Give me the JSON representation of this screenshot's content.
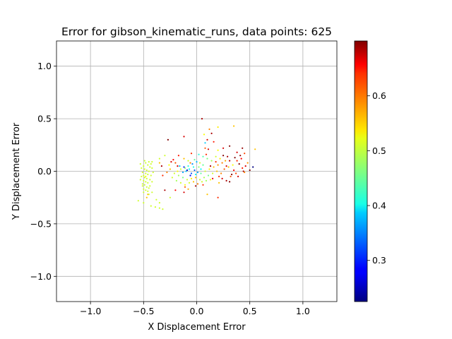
{
  "chart_data": {
    "type": "scatter",
    "title": "Error for gibson_kinematic_runs, data points: 625",
    "xlabel": "X Displacement Error",
    "ylabel": "Y Displacement Error",
    "xlim": [
      -1.32,
      1.32
    ],
    "ylim": [
      -1.24,
      1.24
    ],
    "x_ticks": [
      -1.0,
      -0.5,
      0.0,
      0.5,
      1.0
    ],
    "x_tick_labels": [
      "−1.0",
      "−0.5",
      "0.0",
      "0.5",
      "1.0"
    ],
    "y_ticks": [
      1.0,
      0.5,
      0.0,
      -0.5,
      -1.0
    ],
    "y_tick_labels": [
      "1.0",
      "0.5",
      "0.0",
      "−0.5",
      "−1.0"
    ],
    "grid": true,
    "colorbar": {
      "cmap": "jet",
      "vmin": 0.225,
      "vmax": 0.7,
      "ticks": [
        0.3,
        0.4,
        0.5,
        0.6
      ],
      "tick_labels": [
        "0.3",
        "0.4",
        "0.5",
        "0.6"
      ]
    },
    "points": [
      {
        "x": 0.05,
        "y": 0.5,
        "c": 0.68
      },
      {
        "x": -0.12,
        "y": 0.33,
        "c": 0.66
      },
      {
        "x": 0.35,
        "y": 0.43,
        "c": 0.55
      },
      {
        "x": 0.2,
        "y": 0.42,
        "c": 0.53
      },
      {
        "x": 0.12,
        "y": 0.4,
        "c": 0.58
      },
      {
        "x": 0.14,
        "y": 0.36,
        "c": 0.68
      },
      {
        "x": -0.27,
        "y": 0.3,
        "c": 0.7
      },
      {
        "x": 0.07,
        "y": 0.35,
        "c": 0.52
      },
      {
        "x": 0.1,
        "y": 0.3,
        "c": 0.66
      },
      {
        "x": 0.16,
        "y": 0.28,
        "c": 0.63
      },
      {
        "x": 0.08,
        "y": 0.27,
        "c": 0.38
      },
      {
        "x": 0.08,
        "y": 0.22,
        "c": 0.6
      },
      {
        "x": 0.11,
        "y": 0.21,
        "c": 0.66
      },
      {
        "x": 0.2,
        "y": 0.2,
        "c": 0.52
      },
      {
        "x": 0.25,
        "y": 0.22,
        "c": 0.66
      },
      {
        "x": 0.31,
        "y": 0.24,
        "c": 0.7
      },
      {
        "x": 0.43,
        "y": 0.22,
        "c": 0.69
      },
      {
        "x": 0.55,
        "y": 0.21,
        "c": 0.55
      },
      {
        "x": 0.38,
        "y": 0.18,
        "c": 0.66
      },
      {
        "x": 0.45,
        "y": 0.17,
        "c": 0.61
      },
      {
        "x": -0.05,
        "y": 0.17,
        "c": 0.62
      },
      {
        "x": -0.17,
        "y": 0.15,
        "c": 0.63
      },
      {
        "x": 0.29,
        "y": 0.14,
        "c": 0.68
      },
      {
        "x": 0.36,
        "y": 0.13,
        "c": 0.7
      },
      {
        "x": 0.42,
        "y": 0.12,
        "c": 0.64
      },
      {
        "x": 0.31,
        "y": 0.1,
        "c": 0.67
      },
      {
        "x": 0.48,
        "y": 0.08,
        "c": 0.57
      },
      {
        "x": 0.4,
        "y": 0.07,
        "c": 0.7
      },
      {
        "x": 0.46,
        "y": 0.05,
        "c": 0.66
      },
      {
        "x": 0.53,
        "y": 0.04,
        "c": 0.22
      },
      {
        "x": 0.5,
        "y": 0.01,
        "c": 0.7
      },
      {
        "x": 0.43,
        "y": 0.03,
        "c": 0.63
      },
      {
        "x": 0.44,
        "y": 0.0,
        "c": 0.68
      },
      {
        "x": 0.37,
        "y": -0.02,
        "c": 0.61
      },
      {
        "x": 0.33,
        "y": -0.03,
        "c": 0.7
      },
      {
        "x": 0.39,
        "y": -0.05,
        "c": 0.66
      },
      {
        "x": 0.15,
        "y": -0.07,
        "c": 0.65
      },
      {
        "x": 0.28,
        "y": -0.09,
        "c": 0.68
      },
      {
        "x": 0.31,
        "y": -0.1,
        "c": 0.7
      },
      {
        "x": 0.21,
        "y": -0.11,
        "c": 0.55
      },
      {
        "x": -0.01,
        "y": -0.14,
        "c": 0.68
      },
      {
        "x": -0.11,
        "y": -0.15,
        "c": 0.6
      },
      {
        "x": -0.2,
        "y": -0.18,
        "c": 0.64
      },
      {
        "x": -0.3,
        "y": -0.18,
        "c": 0.68
      },
      {
        "x": -0.12,
        "y": -0.2,
        "c": 0.66
      },
      {
        "x": 0.1,
        "y": -0.22,
        "c": 0.55
      },
      {
        "x": 0.2,
        "y": -0.25,
        "c": 0.62
      },
      {
        "x": -0.47,
        "y": -0.25,
        "c": 0.55
      },
      {
        "x": -0.55,
        "y": -0.28,
        "c": 0.5
      },
      {
        "x": -0.5,
        "y": -0.3,
        "c": 0.5
      },
      {
        "x": -0.43,
        "y": -0.33,
        "c": 0.5
      },
      {
        "x": -0.39,
        "y": -0.34,
        "c": 0.5
      },
      {
        "x": -0.35,
        "y": -0.35,
        "c": 0.5
      },
      {
        "x": -0.32,
        "y": -0.36,
        "c": 0.5
      },
      {
        "x": -0.35,
        "y": -0.3,
        "c": 0.5
      },
      {
        "x": -0.38,
        "y": -0.27,
        "c": 0.5
      },
      {
        "x": -0.45,
        "y": -0.22,
        "c": 0.5
      },
      {
        "x": -0.42,
        "y": -0.2,
        "c": 0.5
      },
      {
        "x": -0.25,
        "y": -0.25,
        "c": 0.5
      },
      {
        "x": -0.3,
        "y": 0.15,
        "c": 0.5
      },
      {
        "x": -0.35,
        "y": 0.12,
        "c": 0.5
      },
      {
        "x": -0.26,
        "y": 0.06,
        "c": 0.52
      },
      {
        "x": -0.24,
        "y": 0.09,
        "c": 0.66
      },
      {
        "x": -0.2,
        "y": 0.08,
        "c": 0.6
      },
      {
        "x": -0.35,
        "y": 0.08,
        "c": 0.55
      },
      {
        "x": -0.42,
        "y": 0.09,
        "c": 0.5
      },
      {
        "x": -0.12,
        "y": 0.12,
        "c": 0.55
      },
      {
        "x": -0.08,
        "y": 0.1,
        "c": 0.5
      },
      {
        "x": -0.02,
        "y": 0.11,
        "c": 0.45
      },
      {
        "x": 0.03,
        "y": 0.08,
        "c": 0.5
      },
      {
        "x": 0.06,
        "y": 0.06,
        "c": 0.45
      },
      {
        "x": 0.02,
        "y": 0.04,
        "c": 0.47
      },
      {
        "x": -0.03,
        "y": 0.04,
        "c": 0.42
      },
      {
        "x": -0.07,
        "y": 0.02,
        "c": 0.4
      },
      {
        "x": -0.1,
        "y": 0.0,
        "c": 0.38
      },
      {
        "x": -0.13,
        "y": -0.01,
        "c": 0.36
      },
      {
        "x": -0.05,
        "y": -0.02,
        "c": 0.33
      },
      {
        "x": -0.01,
        "y": -0.03,
        "c": 0.4
      },
      {
        "x": 0.04,
        "y": -0.02,
        "c": 0.45
      },
      {
        "x": 0.08,
        "y": 0.0,
        "c": 0.5
      },
      {
        "x": 0.12,
        "y": 0.02,
        "c": 0.53
      },
      {
        "x": 0.16,
        "y": 0.04,
        "c": 0.55
      },
      {
        "x": 0.2,
        "y": 0.06,
        "c": 0.57
      },
      {
        "x": 0.24,
        "y": 0.08,
        "c": 0.58
      },
      {
        "x": 0.27,
        "y": 0.1,
        "c": 0.56
      },
      {
        "x": 0.22,
        "y": 0.12,
        "c": 0.53
      },
      {
        "x": 0.18,
        "y": 0.14,
        "c": 0.5
      },
      {
        "x": 0.14,
        "y": 0.1,
        "c": 0.48
      },
      {
        "x": 0.1,
        "y": 0.12,
        "c": 0.46
      },
      {
        "x": 0.06,
        "y": 0.14,
        "c": 0.44
      },
      {
        "x": 0.02,
        "y": 0.16,
        "c": 0.42
      },
      {
        "x": 0.0,
        "y": 0.09,
        "c": 0.37
      },
      {
        "x": -0.04,
        "y": 0.07,
        "c": 0.35
      },
      {
        "x": -0.08,
        "y": 0.05,
        "c": 0.42
      },
      {
        "x": -0.11,
        "y": 0.03,
        "c": 0.47
      },
      {
        "x": -0.15,
        "y": 0.02,
        "c": 0.5
      },
      {
        "x": -0.18,
        "y": 0.0,
        "c": 0.52
      },
      {
        "x": -0.21,
        "y": -0.02,
        "c": 0.5
      },
      {
        "x": -0.17,
        "y": -0.04,
        "c": 0.48
      },
      {
        "x": -0.13,
        "y": -0.06,
        "c": 0.46
      },
      {
        "x": -0.09,
        "y": -0.08,
        "c": 0.5
      },
      {
        "x": -0.05,
        "y": -0.07,
        "c": 0.53
      },
      {
        "x": -0.01,
        "y": -0.06,
        "c": 0.55
      },
      {
        "x": 0.03,
        "y": -0.08,
        "c": 0.5
      },
      {
        "x": 0.07,
        "y": -0.06,
        "c": 0.48
      },
      {
        "x": 0.11,
        "y": -0.04,
        "c": 0.46
      },
      {
        "x": 0.15,
        "y": -0.02,
        "c": 0.5
      },
      {
        "x": 0.19,
        "y": 0.0,
        "c": 0.55
      },
      {
        "x": 0.23,
        "y": -0.02,
        "c": 0.58
      },
      {
        "x": 0.26,
        "y": 0.02,
        "c": 0.6
      },
      {
        "x": 0.3,
        "y": 0.04,
        "c": 0.55
      },
      {
        "x": 0.34,
        "y": 0.06,
        "c": 0.52
      },
      {
        "x": -0.25,
        "y": 0.02,
        "c": 0.55
      },
      {
        "x": -0.28,
        "y": -0.01,
        "c": 0.58
      },
      {
        "x": -0.32,
        "y": -0.04,
        "c": 0.62
      },
      {
        "x": -0.23,
        "y": -0.06,
        "c": 0.5
      },
      {
        "x": -0.19,
        "y": -0.09,
        "c": 0.48
      },
      {
        "x": -0.15,
        "y": -0.11,
        "c": 0.5
      },
      {
        "x": -0.11,
        "y": -0.13,
        "c": 0.52
      },
      {
        "x": -0.07,
        "y": -0.11,
        "c": 0.5
      },
      {
        "x": -0.03,
        "y": -0.1,
        "c": 0.55
      },
      {
        "x": 0.01,
        "y": -0.12,
        "c": 0.58
      },
      {
        "x": 0.05,
        "y": -0.1,
        "c": 0.5
      },
      {
        "x": 0.09,
        "y": -0.09,
        "c": 0.48
      },
      {
        "x": 0.13,
        "y": -0.08,
        "c": 0.52
      },
      {
        "x": -0.09,
        "y": 0.01,
        "c": 0.26
      },
      {
        "x": -0.12,
        "y": 0.04,
        "c": 0.3
      },
      {
        "x": -0.06,
        "y": -0.04,
        "c": 0.28
      },
      {
        "x": -0.02,
        "y": 0.01,
        "c": 0.33
      },
      {
        "x": 0.01,
        "y": -0.01,
        "c": 0.36
      },
      {
        "x": -0.16,
        "y": 0.05,
        "c": 0.38
      },
      {
        "x": 0.04,
        "y": 0.02,
        "c": 0.4
      },
      {
        "x": -0.48,
        "y": 0.08,
        "c": 0.5
      },
      {
        "x": -0.46,
        "y": 0.06,
        "c": 0.5
      },
      {
        "x": -0.44,
        "y": 0.04,
        "c": 0.5
      },
      {
        "x": -0.5,
        "y": 0.05,
        "c": 0.5
      },
      {
        "x": -0.52,
        "y": 0.03,
        "c": 0.5
      },
      {
        "x": -0.49,
        "y": 0.02,
        "c": 0.5
      },
      {
        "x": -0.47,
        "y": 0.01,
        "c": 0.5
      },
      {
        "x": -0.45,
        "y": 0.0,
        "c": 0.5
      },
      {
        "x": -0.51,
        "y": -0.01,
        "c": 0.5
      },
      {
        "x": -0.48,
        "y": -0.02,
        "c": 0.5
      },
      {
        "x": -0.46,
        "y": -0.03,
        "c": 0.5
      },
      {
        "x": -0.5,
        "y": -0.04,
        "c": 0.5
      },
      {
        "x": -0.52,
        "y": -0.05,
        "c": 0.5
      },
      {
        "x": -0.49,
        "y": -0.06,
        "c": 0.5
      },
      {
        "x": -0.47,
        "y": -0.07,
        "c": 0.5
      },
      {
        "x": -0.44,
        "y": -0.08,
        "c": 0.5
      },
      {
        "x": -0.5,
        "y": -0.09,
        "c": 0.5
      },
      {
        "x": -0.48,
        "y": -0.1,
        "c": 0.5
      },
      {
        "x": -0.46,
        "y": -0.11,
        "c": 0.5
      },
      {
        "x": -0.51,
        "y": -0.12,
        "c": 0.5
      },
      {
        "x": -0.49,
        "y": -0.13,
        "c": 0.5
      },
      {
        "x": -0.47,
        "y": -0.15,
        "c": 0.5
      },
      {
        "x": -0.45,
        "y": -0.16,
        "c": 0.5
      },
      {
        "x": -0.5,
        "y": -0.17,
        "c": 0.5
      },
      {
        "x": -0.48,
        "y": -0.18,
        "c": 0.5
      },
      {
        "x": -0.46,
        "y": -0.19,
        "c": 0.5
      },
      {
        "x": -0.43,
        "y": 0.07,
        "c": 0.5
      },
      {
        "x": -0.42,
        "y": 0.03,
        "c": 0.5
      },
      {
        "x": -0.41,
        "y": -0.01,
        "c": 0.5
      },
      {
        "x": -0.43,
        "y": -0.04,
        "c": 0.5
      },
      {
        "x": -0.42,
        "y": -0.1,
        "c": 0.5
      },
      {
        "x": -0.53,
        "y": 0.07,
        "c": 0.5
      },
      {
        "x": -0.53,
        "y": -0.08,
        "c": 0.5
      },
      {
        "x": -0.51,
        "y": -0.14,
        "c": 0.5
      },
      {
        "x": -0.49,
        "y": 0.1,
        "c": 0.5
      },
      {
        "x": -0.45,
        "y": 0.09,
        "c": 0.5
      },
      {
        "x": -0.5,
        "y": -0.2,
        "c": 0.5
      },
      {
        "x": -0.46,
        "y": -0.22,
        "c": 0.55
      },
      {
        "x": -0.44,
        "y": -0.14,
        "c": 0.5
      },
      {
        "x": -0.48,
        "y": -0.05,
        "c": 0.52
      },
      {
        "x": 0.38,
        "y": 0.1,
        "c": 0.62
      },
      {
        "x": 0.41,
        "y": 0.15,
        "c": 0.69
      },
      {
        "x": 0.35,
        "y": 0.01,
        "c": 0.64
      },
      {
        "x": 0.28,
        "y": 0.05,
        "c": 0.66
      },
      {
        "x": 0.32,
        "y": -0.05,
        "c": 0.6
      },
      {
        "x": 0.45,
        "y": -0.01,
        "c": 0.58
      },
      {
        "x": 0.25,
        "y": 0.15,
        "c": 0.7
      },
      {
        "x": 0.18,
        "y": 0.09,
        "c": 0.62
      },
      {
        "x": -0.33,
        "y": 0.05,
        "c": 0.68
      },
      {
        "x": -0.22,
        "y": 0.11,
        "c": 0.64
      },
      {
        "x": -0.18,
        "y": 0.05,
        "c": 0.66
      },
      {
        "x": -0.06,
        "y": 0.08,
        "c": 0.58
      },
      {
        "x": 0.09,
        "y": 0.16,
        "c": 0.62
      },
      {
        "x": 0.13,
        "y": 0.05,
        "c": 0.68
      },
      {
        "x": 0.21,
        "y": -0.05,
        "c": 0.62
      },
      {
        "x": 0.24,
        "y": -0.07,
        "c": 0.66
      },
      {
        "x": 0.06,
        "y": -0.13,
        "c": 0.62
      },
      {
        "x": -0.08,
        "y": -0.17,
        "c": 0.56
      }
    ]
  }
}
